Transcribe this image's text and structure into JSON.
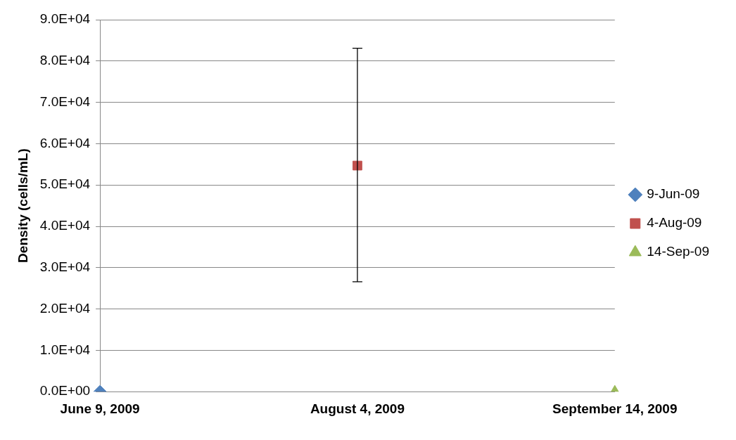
{
  "chart_data": {
    "type": "scatter",
    "ylabel": "Density (cells/mL)",
    "categories": [
      "June 9, 2009",
      "August 4, 2009",
      "September 14, 2009"
    ],
    "series": [
      {
        "name": "9-Jun-09",
        "color": "#4f81bd",
        "marker": "diamond",
        "values": [
          0,
          null,
          null
        ]
      },
      {
        "name": "4-Aug-09",
        "color": "#c0504d",
        "marker": "square",
        "values": [
          null,
          54700,
          null
        ],
        "errors": [
          null,
          [
            26600,
            83100
          ],
          null
        ]
      },
      {
        "name": "14-Sep-09",
        "color": "#9bbb59",
        "marker": "triangle",
        "values": [
          null,
          null,
          0
        ]
      }
    ],
    "ylim": [
      0,
      90000
    ],
    "yticks": [
      {
        "value": 0,
        "label": "0.0E+00"
      },
      {
        "value": 10000,
        "label": "1.0E+04"
      },
      {
        "value": 20000,
        "label": "2.0E+04"
      },
      {
        "value": 30000,
        "label": "3.0E+04"
      },
      {
        "value": 40000,
        "label": "4.0E+04"
      },
      {
        "value": 50000,
        "label": "5.0E+04"
      },
      {
        "value": 60000,
        "label": "6.0E+04"
      },
      {
        "value": 70000,
        "label": "7.0E+04"
      },
      {
        "value": 80000,
        "label": "8.0E+04"
      },
      {
        "value": 90000,
        "label": "9.0E+04"
      }
    ],
    "grid": "y",
    "legend": "right"
  }
}
